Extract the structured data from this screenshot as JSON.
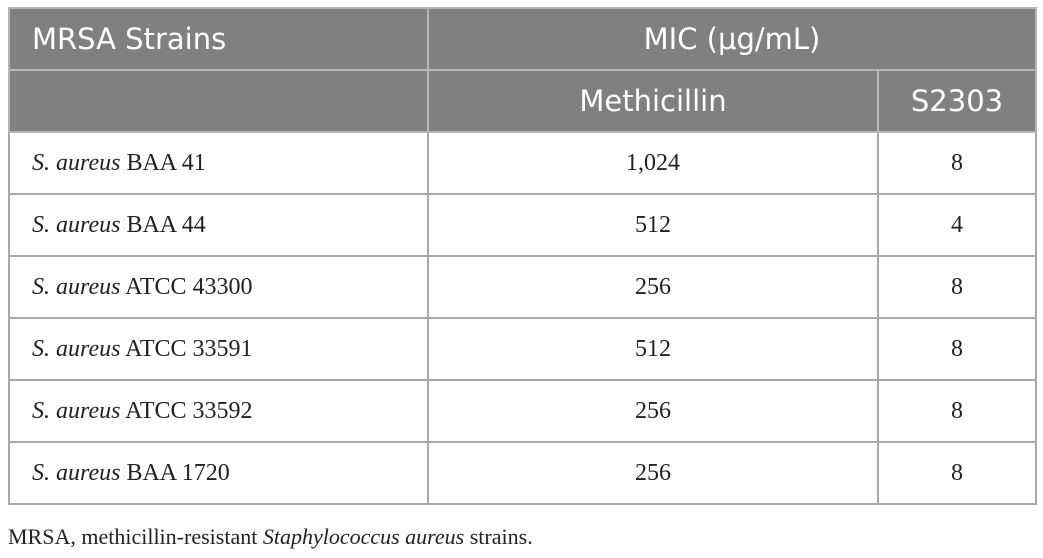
{
  "table": {
    "header": {
      "strain": "MRSA Strains",
      "mic": "MIC (μg/mL)",
      "columns": [
        "Methicillin",
        "S2303"
      ]
    },
    "rows": [
      {
        "species": "S. aureus",
        "strain": "BAA 41",
        "values": [
          "1,024",
          "8"
        ]
      },
      {
        "species": "S. aureus",
        "strain": "BAA 44",
        "values": [
          "512",
          "4"
        ]
      },
      {
        "species": "S. aureus",
        "strain": "ATCC 43300",
        "values": [
          "256",
          "8"
        ]
      },
      {
        "species": "S. aureus",
        "strain": "ATCC 33591",
        "values": [
          "512",
          "8"
        ]
      },
      {
        "species": "S. aureus",
        "strain": "ATCC 33592",
        "values": [
          "256",
          "8"
        ]
      },
      {
        "species": "S. aureus",
        "strain": "BAA 1720",
        "values": [
          "256",
          "8"
        ]
      }
    ]
  },
  "footnote": {
    "prefix": "MRSA, methicillin-resistant",
    "species": "Staphylococcus aureus",
    "suffix": "strains."
  }
}
